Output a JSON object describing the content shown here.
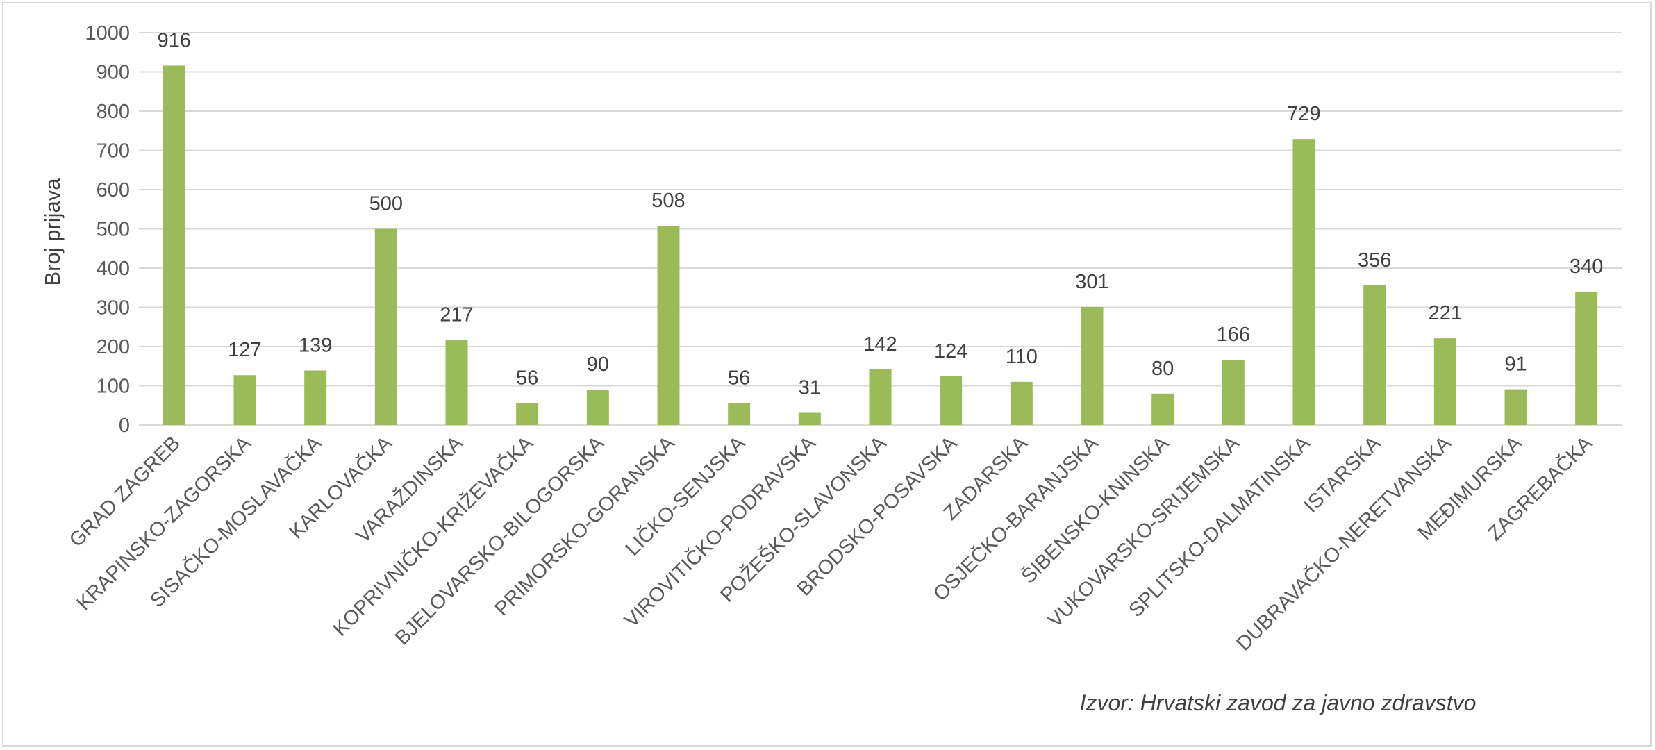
{
  "chart_data": {
    "type": "bar",
    "ylabel": "Broj prijava",
    "xlabel": "",
    "ylim": [
      0,
      1000
    ],
    "yticks": [
      0,
      100,
      200,
      300,
      400,
      500,
      600,
      700,
      800,
      900,
      1000
    ],
    "grid": true,
    "legend": "none",
    "bar_color": "#9bbb59",
    "categories": [
      "GRAD ZAGREB",
      "KRAPINSKO-ZAGORSKA",
      "SISAČKO-MOSLAVAČKA",
      "KARLOVAČKA",
      "VARAŽDINSKA",
      "KOPRIVNIČKO-KRIŽEVAČKA",
      "BJELOVARSKO-BILOGORSKA",
      "PRIMORSKO-GORANSKA",
      "LIČKO-SENJSKA",
      "VIROVITIČKO-PODRAVSKA",
      "POŽEŠKO-SLAVONSKA",
      "BRODSKO-POSAVSKA",
      "ZADARSKA",
      "OSJEČKO-BARANJSKA",
      "ŠIBENSKO-KNINSKA",
      "VUKOVARSKO-SRIJEMSKA",
      "SPLITSKO-DALMATINSKA",
      "ISTARSKA",
      "DUBRAVAČKO-NERETVANSKA",
      "MEĐIMURSKA",
      "ZAGREBAČKA"
    ],
    "values": [
      916,
      127,
      139,
      500,
      217,
      56,
      90,
      508,
      56,
      31,
      142,
      124,
      110,
      301,
      80,
      166,
      729,
      356,
      221,
      91,
      340
    ]
  },
  "source_note": "Izvor: Hrvatski zavod za javno zdravstvo"
}
